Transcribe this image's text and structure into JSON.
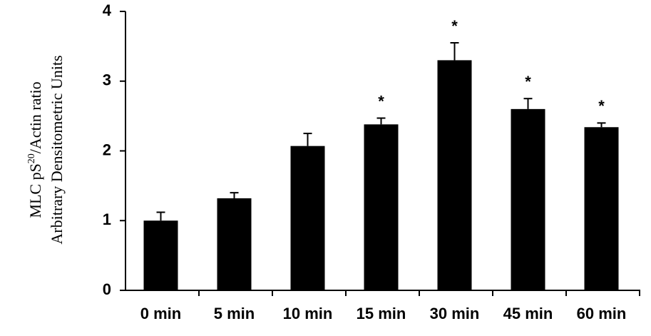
{
  "chart_data": {
    "type": "bar",
    "ylabel_lines": [
      [
        {
          "text": "MLC pS"
        },
        {
          "text": "20",
          "sup": true
        },
        {
          "text": "/Actin ratio"
        }
      ],
      [
        {
          "text": "Arbitrary Densitometric Units"
        }
      ]
    ],
    "categories": [
      "0 min",
      "5 min",
      "10 min",
      "15 min",
      "30 min",
      "45 min",
      "60 min"
    ],
    "values": [
      1.0,
      1.32,
      2.07,
      2.38,
      3.3,
      2.6,
      2.34
    ],
    "errors": [
      0.12,
      0.08,
      0.18,
      0.09,
      0.25,
      0.15,
      0.06
    ],
    "markers": [
      null,
      null,
      null,
      "*",
      "*",
      "*",
      "*"
    ],
    "color": "#000000",
    "ylim": [
      0,
      4
    ],
    "yticks": [
      0,
      1,
      2,
      3,
      4
    ],
    "grid": false
  }
}
